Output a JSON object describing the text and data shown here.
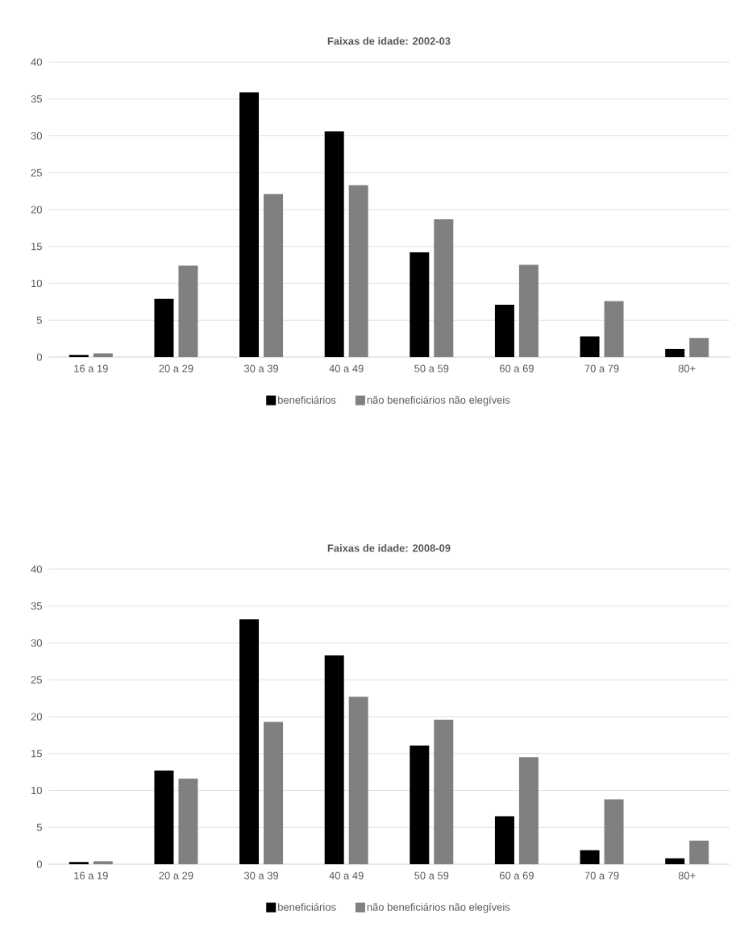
{
  "chart_data": [
    {
      "type": "bar",
      "title": "Faixas de idade: 2002-03",
      "categories": [
        "16 a 19",
        "20 a 29",
        "30 a 39",
        "40 a 49",
        "50 a 59",
        "60 a 69",
        "70 a 79",
        "80+"
      ],
      "series": [
        {
          "name": "beneficiários",
          "color": "#000000",
          "values": [
            0.3,
            7.9,
            35.9,
            30.6,
            14.2,
            7.1,
            2.8,
            1.1
          ]
        },
        {
          "name": "não beneficiários não elegíveis",
          "color": "#808080",
          "values": [
            0.5,
            12.4,
            22.1,
            23.3,
            18.7,
            12.5,
            7.6,
            2.6
          ]
        }
      ],
      "ylim": [
        0,
        40
      ],
      "yticks": [
        0,
        5,
        10,
        15,
        20,
        25,
        30,
        35,
        40
      ],
      "grid": "y",
      "legend": "bottom"
    },
    {
      "type": "bar",
      "title": "Faixas de idade: 2008-09",
      "categories": [
        "16 a 19",
        "20 a 29",
        "30 a 39",
        "40 a 49",
        "50 a 59",
        "60 a 69",
        "70 a 79",
        "80+"
      ],
      "series": [
        {
          "name": "beneficiários",
          "color": "#000000",
          "values": [
            0.3,
            12.7,
            33.2,
            28.3,
            16.1,
            6.5,
            1.9,
            0.8
          ]
        },
        {
          "name": "não beneficiários não elegíveis",
          "color": "#808080",
          "values": [
            0.4,
            11.6,
            19.3,
            22.7,
            19.6,
            14.5,
            8.8,
            3.2
          ]
        }
      ],
      "ylim": [
        0,
        40
      ],
      "yticks": [
        0,
        5,
        10,
        15,
        20,
        25,
        30,
        35,
        40
      ],
      "grid": "y",
      "legend": "bottom"
    }
  ]
}
